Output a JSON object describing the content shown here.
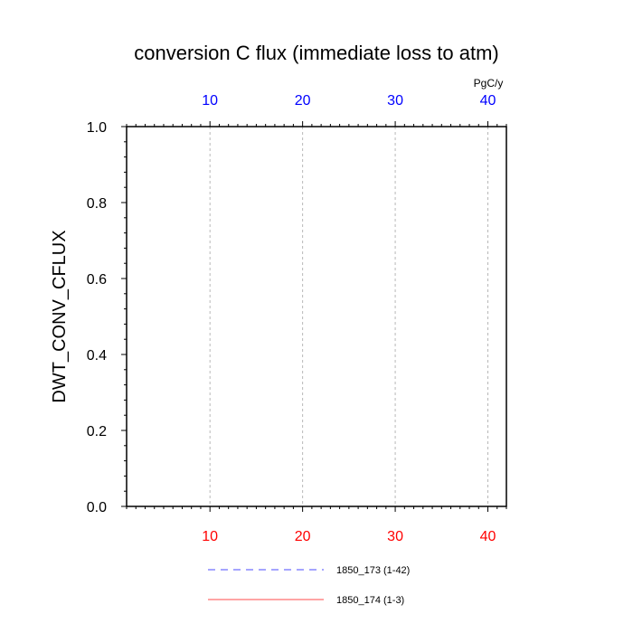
{
  "chart_data": {
    "type": "line",
    "title": "conversion C flux (immediate loss to atm)",
    "xlabel": "",
    "ylabel": "DWT_CONV_CFLUX",
    "top_axis_unit": "PgC/y",
    "xlim": [
      1,
      42
    ],
    "ylim": [
      0,
      1
    ],
    "x_ticks": [
      10,
      20,
      30,
      40
    ],
    "y_ticks": [
      "0.0",
      "0.2",
      "0.4",
      "0.6",
      "0.8",
      "1.0"
    ],
    "y_tick_values": [
      0,
      0.2,
      0.4,
      0.6,
      0.8,
      1.0
    ],
    "grid": "vertical dashed at major x ticks",
    "legend_position": "bottom",
    "series": [
      {
        "name": "1850_173 (1-42)",
        "axis": "top",
        "color": "#0000ff",
        "style": "dashed",
        "x": [
          1,
          42
        ],
        "y": [
          0,
          0
        ]
      },
      {
        "name": "1850_174 (1-3)",
        "axis": "bottom",
        "color": "#ff0000",
        "style": "solid",
        "x": [
          1,
          3
        ],
        "y": [
          0,
          0
        ]
      }
    ],
    "colors": {
      "top_axis": "#0000ff",
      "bottom_axis": "#ff0000"
    }
  }
}
